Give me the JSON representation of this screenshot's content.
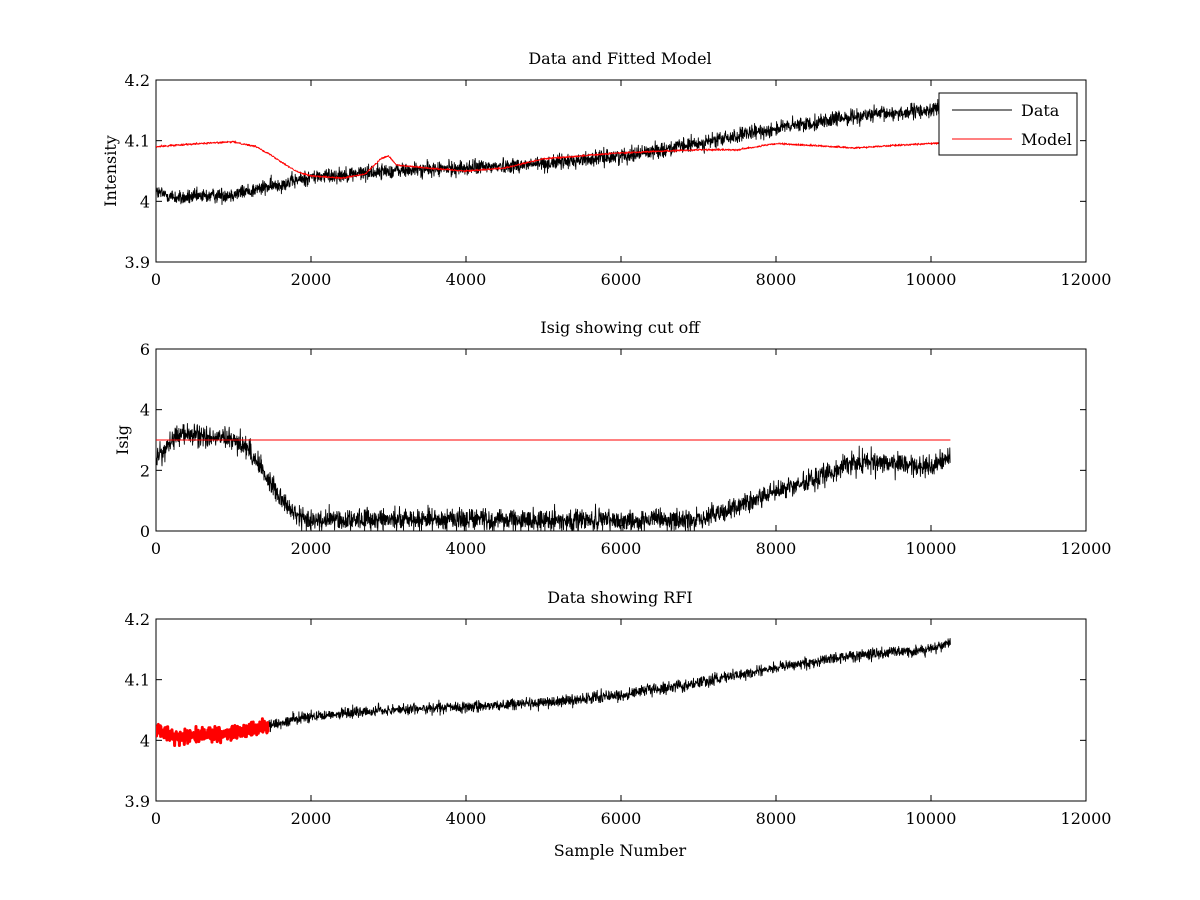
{
  "chart_data": [
    {
      "type": "line",
      "title": "Data and Fitted Model",
      "xlabel": "",
      "ylabel": "Intensity",
      "xlim": [
        0,
        12000
      ],
      "ylim": [
        3.9,
        4.2
      ],
      "xticks": [
        "0",
        "2000",
        "4000",
        "6000",
        "8000",
        "10000",
        "12000"
      ],
      "yticks": [
        "3.9",
        "4",
        "4.1",
        "4.2"
      ],
      "grid": false,
      "legend": "top-right",
      "series": [
        {
          "name": "Data",
          "color": "#000000",
          "noise": 0.012,
          "x": [
            0,
            300,
            1000,
            1500,
            2000,
            3000,
            4000,
            5000,
            6000,
            7000,
            8000,
            9000,
            10000,
            10250
          ],
          "y": [
            4.015,
            4.005,
            4.012,
            4.025,
            4.04,
            4.05,
            4.055,
            4.062,
            4.075,
            4.095,
            4.12,
            4.14,
            4.15,
            4.16
          ]
        },
        {
          "name": "Model",
          "color": "#ff0000",
          "noise": 0.0015,
          "x": [
            0,
            500,
            1000,
            1300,
            1500,
            1800,
            2000,
            2400,
            2700,
            2900,
            3000,
            3100,
            3500,
            4000,
            4500,
            5000,
            6000,
            7000,
            7500,
            8000,
            8500,
            9000,
            9500,
            10250
          ],
          "y": [
            4.09,
            4.095,
            4.098,
            4.09,
            4.075,
            4.05,
            4.042,
            4.038,
            4.045,
            4.07,
            4.075,
            4.06,
            4.055,
            4.05,
            4.055,
            4.07,
            4.08,
            4.085,
            4.085,
            4.095,
            4.092,
            4.088,
            4.092,
            4.097
          ]
        }
      ]
    },
    {
      "type": "line",
      "title": "Isig showing cut off",
      "xlabel": "",
      "ylabel": "Isig",
      "xlim": [
        0,
        12000
      ],
      "ylim": [
        0,
        6
      ],
      "xticks": [
        "0",
        "2000",
        "4000",
        "6000",
        "8000",
        "10000",
        "12000"
      ],
      "yticks": [
        "0",
        "2",
        "4",
        "6"
      ],
      "grid": false,
      "series": [
        {
          "color": "#000000",
          "noise": 0.35,
          "clipMin": 0,
          "x": [
            0,
            300,
            1000,
            1200,
            1500,
            1800,
            2000,
            3000,
            4000,
            5000,
            6000,
            7000,
            7300,
            8000,
            8500,
            9000,
            9500,
            10000,
            10250
          ],
          "y": [
            2.4,
            3.2,
            3.0,
            2.7,
            1.5,
            0.5,
            0.35,
            0.4,
            0.4,
            0.35,
            0.35,
            0.35,
            0.6,
            1.3,
            1.7,
            2.3,
            2.2,
            2.1,
            2.5
          ]
        },
        {
          "color": "#ff0000",
          "noise": 0,
          "x": [
            0,
            10250
          ],
          "y": [
            3,
            3
          ]
        }
      ]
    },
    {
      "type": "line",
      "title": "Data showing RFI",
      "xlabel": "Sample Number",
      "ylabel": "",
      "xlim": [
        0,
        12000
      ],
      "ylim": [
        3.9,
        4.2
      ],
      "xticks": [
        "0",
        "2000",
        "4000",
        "6000",
        "8000",
        "10000",
        "12000"
      ],
      "yticks": [
        "3.9",
        "4",
        "4.1",
        "4.2"
      ],
      "grid": false,
      "series": [
        {
          "color": "#000000",
          "noise": 0.009,
          "x": [
            1450,
            2000,
            3000,
            4000,
            5000,
            6000,
            7000,
            8000,
            9000,
            10000,
            10250
          ],
          "y": [
            4.025,
            4.04,
            4.05,
            4.055,
            4.062,
            4.075,
            4.095,
            4.12,
            4.14,
            4.15,
            4.16
          ]
        },
        {
          "color": "#ff0000",
          "noise": 0.011,
          "marker": "x",
          "x": [
            0,
            300,
            700,
            1000,
            1450
          ],
          "y": [
            4.015,
            4.005,
            4.01,
            4.012,
            4.022
          ]
        }
      ]
    }
  ]
}
